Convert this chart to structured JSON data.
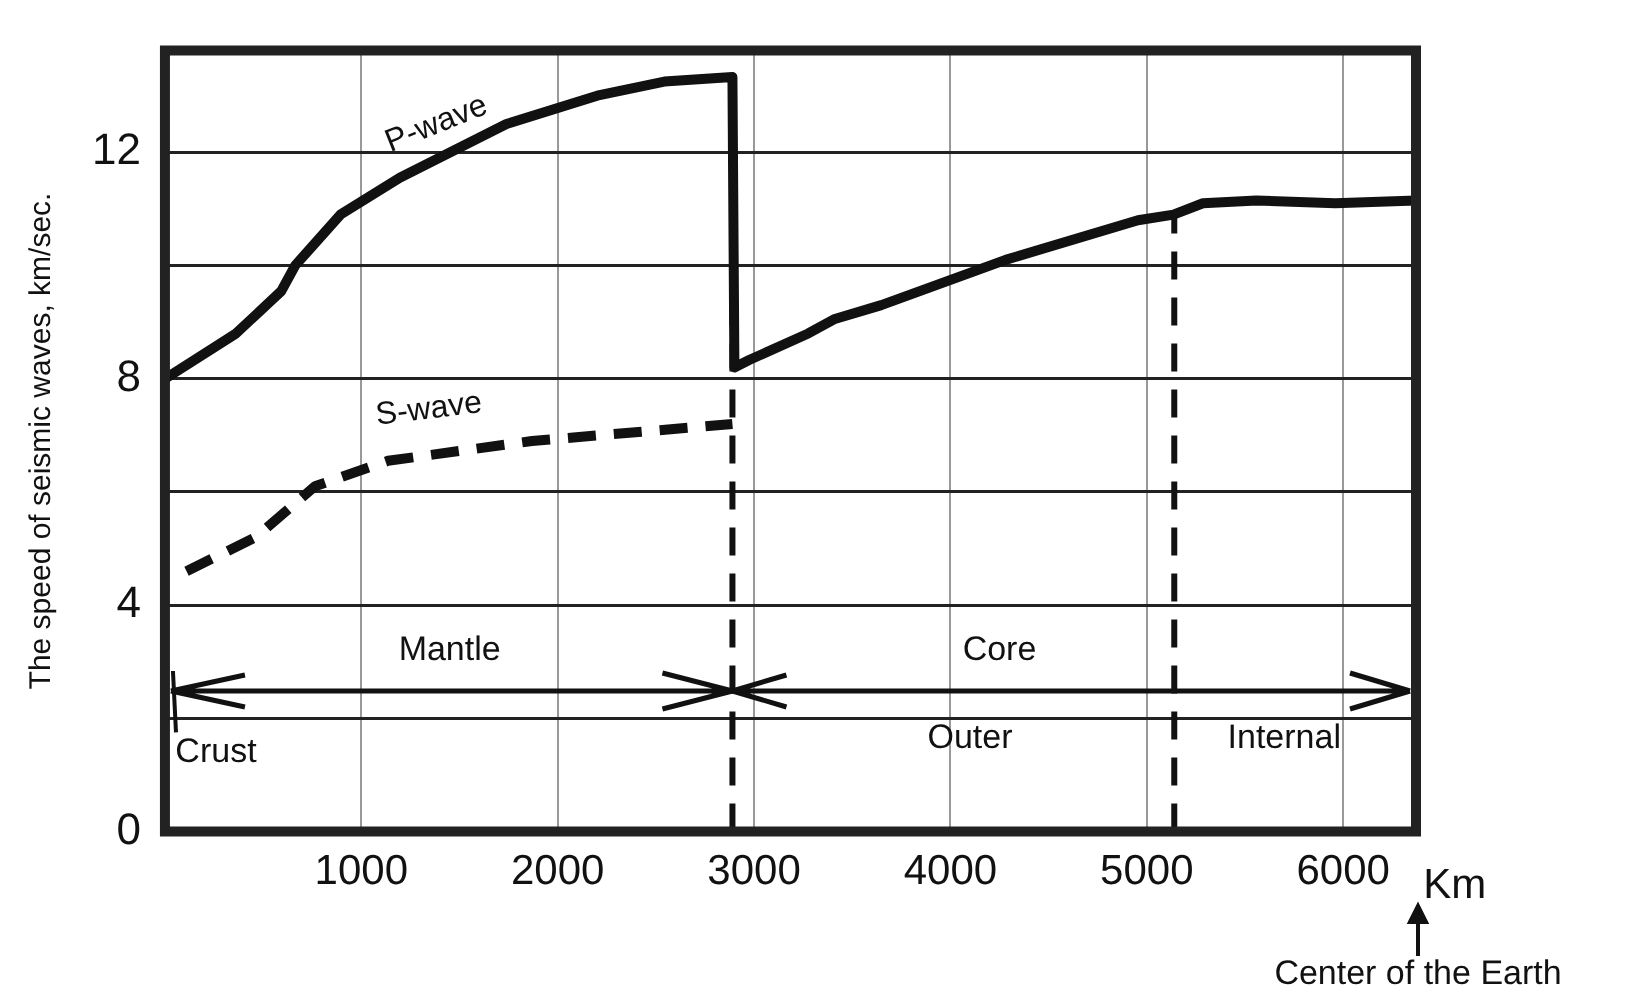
{
  "chart_data": {
    "type": "line",
    "xlabel": "Km",
    "ylabel": "The speed of seismic waves, km/sec.",
    "series": [
      {
        "name": "P-wave",
        "color": "#111111",
        "x": [
          0,
          362,
          593,
          663,
          894,
          1196,
          1739,
          2201,
          2543,
          2890,
          2900,
          2975,
          3276,
          3407,
          3648,
          4281,
          4955,
          5136,
          5286,
          5558,
          5960,
          6371
        ],
        "values": [
          8.0,
          8.8,
          9.55,
          10.0,
          10.9,
          11.55,
          12.5,
          13.0,
          13.25,
          13.33,
          8.2,
          8.33,
          8.8,
          9.05,
          9.3,
          10.1,
          10.8,
          10.9,
          11.1,
          11.15,
          11.1,
          11.15
        ]
      },
      {
        "name": "S-wave",
        "color": "#111111",
        "line_style": "dashed",
        "x": [
          110,
          462,
          764,
          1136,
          1869,
          2890
        ],
        "values": [
          4.6,
          5.2,
          6.1,
          6.55,
          6.9,
          7.2
        ]
      }
    ],
    "xlim": [
      0,
      6371
    ],
    "xticks": [
      1000,
      2000,
      3000,
      4000,
      5000,
      6000
    ],
    "ylim": [
      0,
      13.8
    ],
    "yticks": [
      0,
      {
        "value": 2,
        "label": null
      },
      4,
      {
        "value": 6,
        "label": null
      },
      8,
      {
        "value": 10,
        "label": null
      },
      12
    ],
    "ref_lines": [
      {
        "axis": "x",
        "value": 2890,
        "line_style": "dashed",
        "color": "#111111"
      },
      {
        "axis": "x",
        "value": 5140,
        "line_style": "dashed",
        "color": "#111111"
      }
    ],
    "annotations": [
      "Mantle",
      "Core",
      "Outer",
      "Internal",
      "Crust",
      "Center of the Earth"
    ],
    "grid": true,
    "legend": false,
    "marker": "none",
    "line_style": "solid"
  }
}
